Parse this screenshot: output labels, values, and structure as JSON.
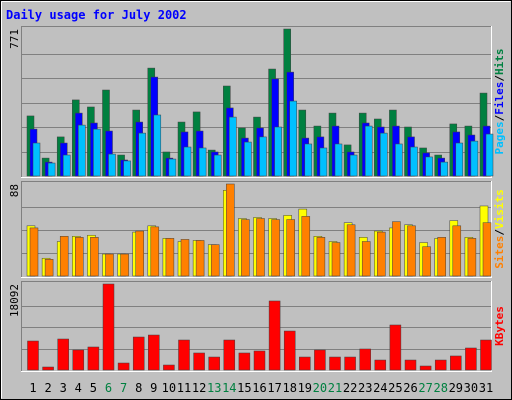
{
  "title": "Daily usage for July 2002",
  "legend_separator": "/",
  "chart_data": [
    {
      "type": "bar",
      "ylim": [
        0,
        771
      ],
      "yticks": [
        771
      ],
      "grid_divisions": 6,
      "series": [
        {
          "name": "Hits",
          "color": "#008040",
          "values": [
            315,
            94,
            205,
            399,
            362,
            451,
            110,
            346,
            566,
            126,
            283,
            336,
            136,
            472,
            252,
            309,
            561,
            771,
            346,
            262,
            330,
            163,
            330,
            299,
            346,
            257,
            147,
            110,
            273,
            262,
            435
          ]
        },
        {
          "name": "Files",
          "color": "#0000ff",
          "values": [
            246,
            73,
            173,
            330,
            278,
            236,
            84,
            283,
            519,
            94,
            231,
            236,
            126,
            357,
            199,
            252,
            509,
            545,
            199,
            205,
            262,
            126,
            278,
            257,
            262,
            205,
            121,
            94,
            231,
            215,
            262
          ]
        },
        {
          "name": "Pages",
          "color": "#00c0ff",
          "values": [
            173,
            68,
            110,
            267,
            246,
            115,
            79,
            225,
            320,
            89,
            152,
            147,
            110,
            309,
            178,
            205,
            257,
            393,
            168,
            147,
            168,
            110,
            262,
            225,
            168,
            152,
            100,
            73,
            173,
            183,
            220
          ]
        }
      ]
    },
    {
      "type": "bar",
      "ylim": [
        0,
        88
      ],
      "yticks": [
        88
      ],
      "grid_divisions": 4,
      "series": [
        {
          "name": "Visits",
          "color": "#ffff00",
          "values": [
            48,
            17,
            33,
            38,
            39,
            21,
            21,
            42,
            48,
            36,
            33,
            34,
            30,
            82,
            55,
            56,
            55,
            58,
            64,
            38,
            33,
            51,
            37,
            43,
            46,
            49,
            32,
            36,
            53,
            37,
            67
          ]
        },
        {
          "name": "Sites",
          "color": "#ff8000",
          "values": [
            46,
            16,
            38,
            37,
            37,
            21,
            21,
            43,
            47,
            36,
            35,
            34,
            30,
            88,
            54,
            55,
            54,
            54,
            57,
            37,
            32,
            49,
            33,
            42,
            52,
            48,
            28,
            37,
            48,
            36,
            51
          ]
        }
      ]
    },
    {
      "type": "bar",
      "ylim": [
        0,
        18092
      ],
      "yticks": [
        18092
      ],
      "grid_divisions": 4,
      "categories": [
        "1",
        "2",
        "3",
        "4",
        "5",
        "6",
        "7",
        "8",
        "9",
        "10",
        "11",
        "12",
        "13",
        "14",
        "15",
        "16",
        "17",
        "18",
        "19",
        "20",
        "21",
        "22",
        "23",
        "24",
        "25",
        "26",
        "27",
        "28",
        "29",
        "30",
        "31"
      ],
      "category_colors": [
        "#000000",
        "#000000",
        "#000000",
        "#000000",
        "#000000",
        "#008040",
        "#008040",
        "#000000",
        "#000000",
        "#000000",
        "#000000",
        "#000000",
        "#008040",
        "#008040",
        "#000000",
        "#000000",
        "#000000",
        "#000000",
        "#000000",
        "#008040",
        "#008040",
        "#000000",
        "#000000",
        "#000000",
        "#000000",
        "#000000",
        "#008040",
        "#008040",
        "#000000",
        "#000000",
        "#000000"
      ],
      "series": [
        {
          "name": "KBytes",
          "color": "#ff0000",
          "values": [
            6100,
            630,
            6520,
            4210,
            4840,
            18092,
            1470,
            6940,
            7360,
            1050,
            6310,
            3580,
            2730,
            6310,
            3580,
            4000,
            14520,
            8200,
            2730,
            4210,
            2730,
            2730,
            4420,
            2100,
            9470,
            2100,
            840,
            2100,
            2950,
            4630,
            6310
          ]
        }
      ]
    }
  ]
}
